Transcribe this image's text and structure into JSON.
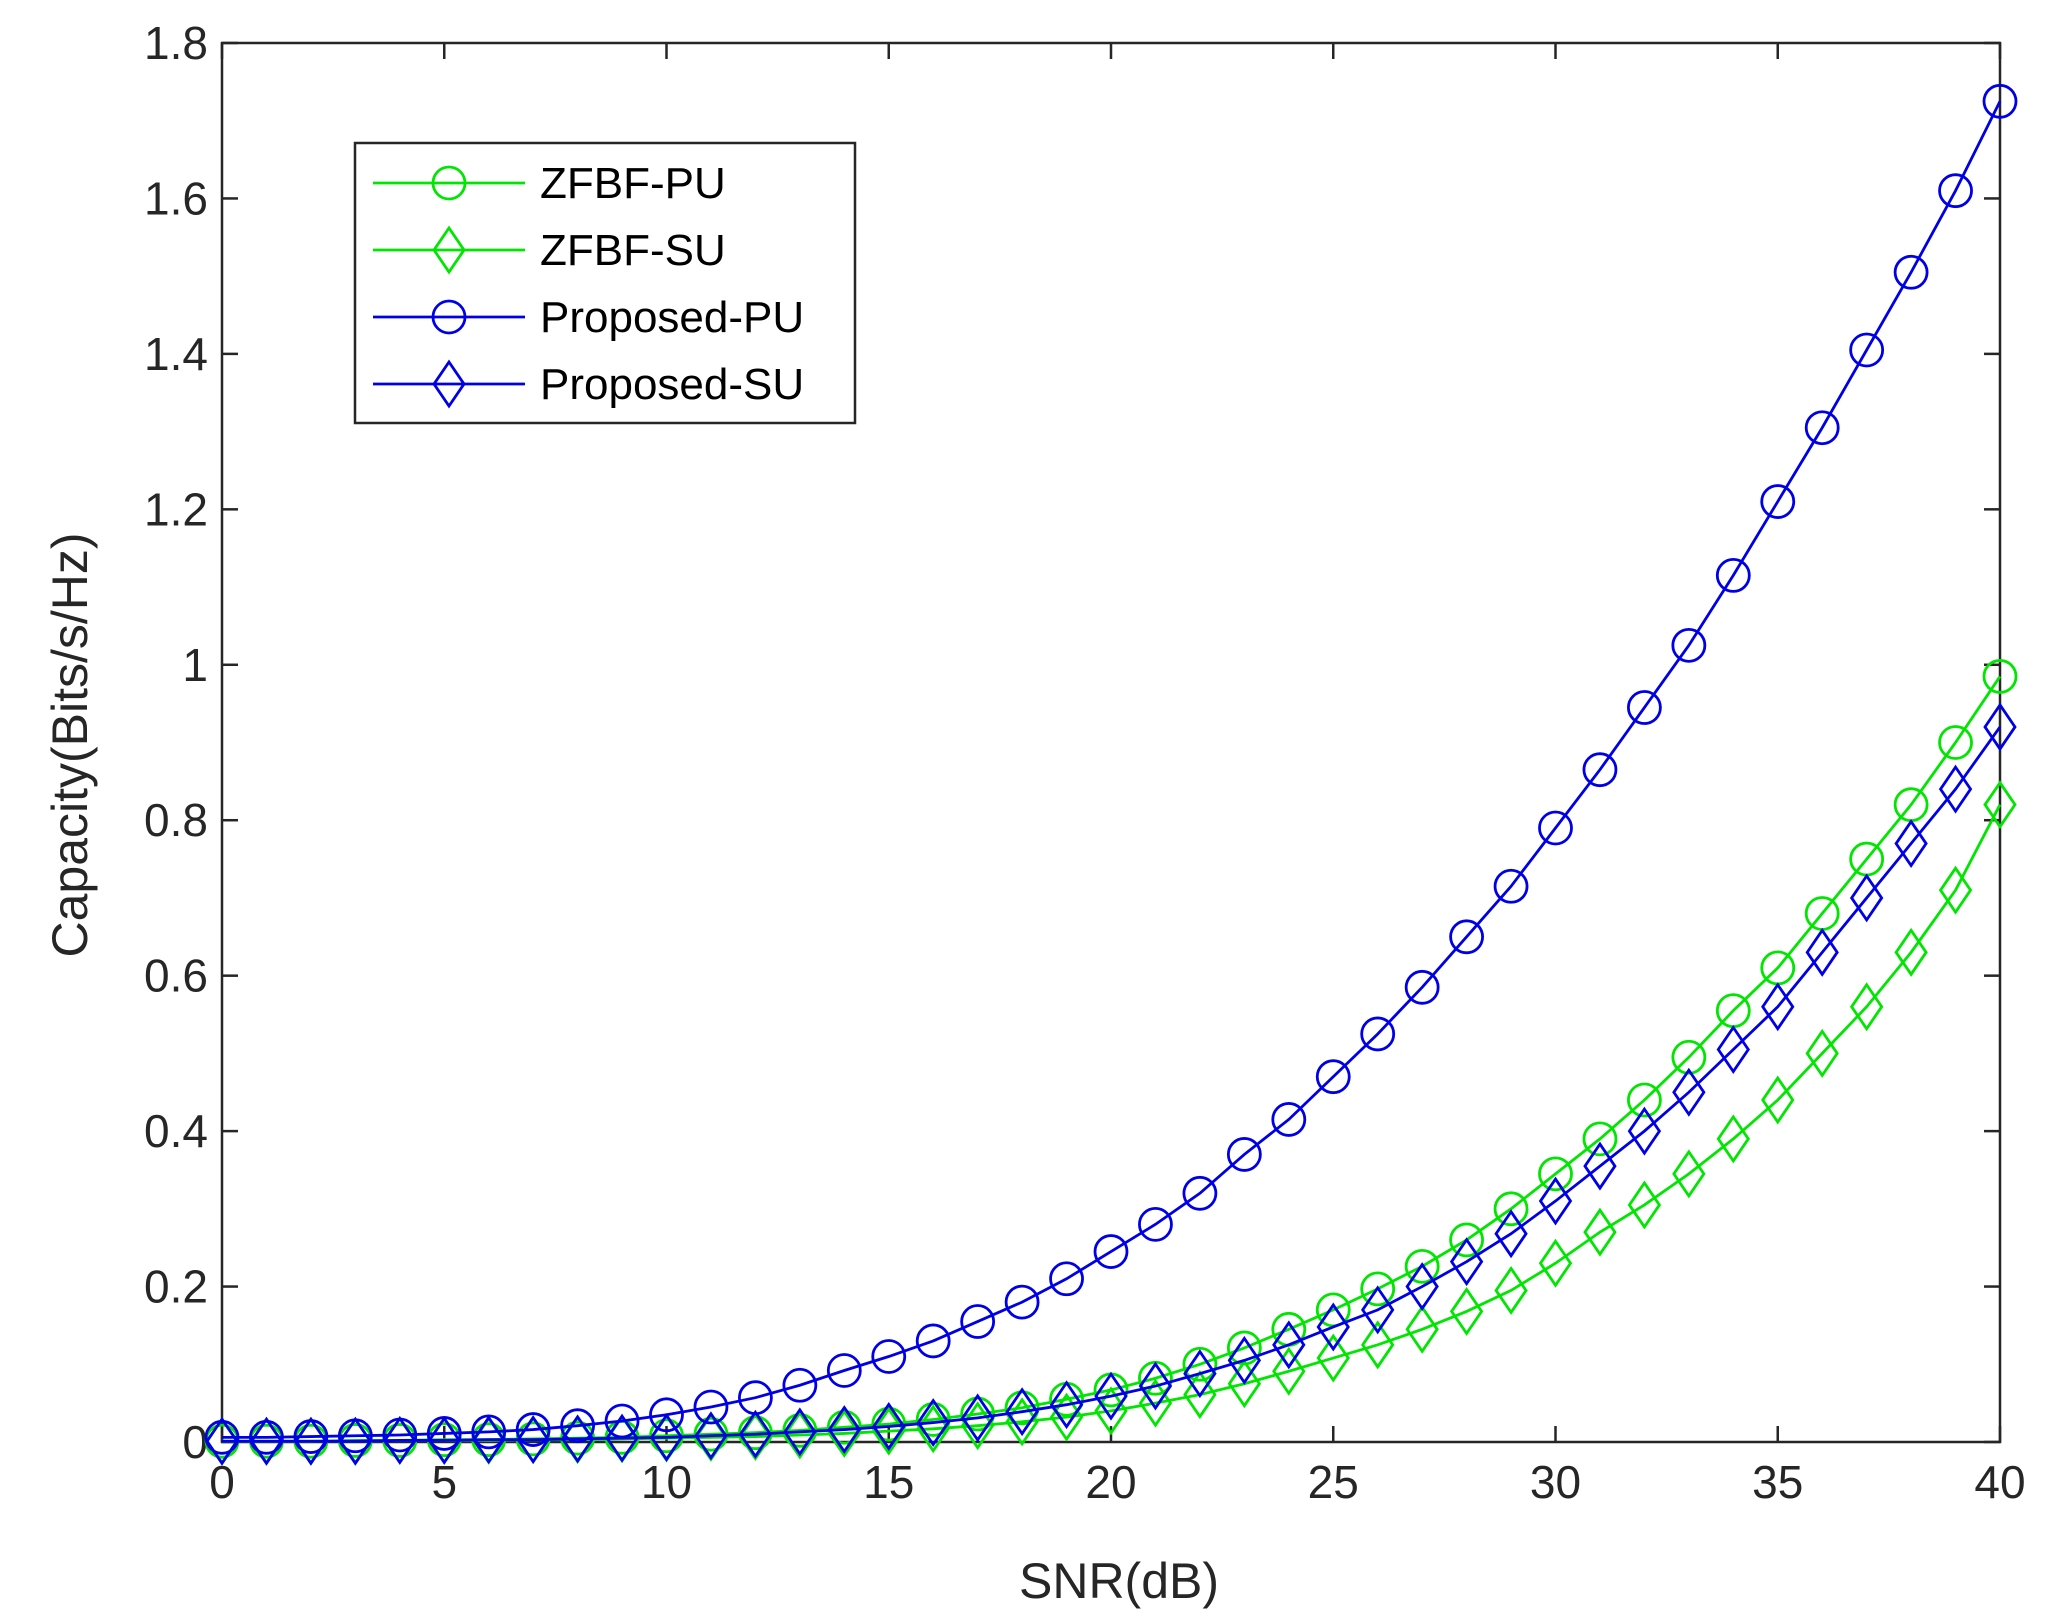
{
  "chart_data": {
    "type": "line",
    "title": "",
    "xlabel": "SNR(dB)",
    "ylabel": "Capacity(Bits/s/Hz)",
    "xlim": [
      0,
      40
    ],
    "ylim": [
      0,
      1.8
    ],
    "xticks": [
      0,
      5,
      10,
      15,
      20,
      25,
      30,
      35,
      40
    ],
    "xtick_labels": [
      "0",
      "5",
      "10",
      "15",
      "20",
      "25",
      "30",
      "35",
      "40"
    ],
    "yticks": [
      0,
      0.2,
      0.4,
      0.6,
      0.8,
      1.0,
      1.2,
      1.4,
      1.6,
      1.8
    ],
    "ytick_labels": [
      "0",
      "0.2",
      "0.4",
      "0.6",
      "0.8",
      "1",
      "1.2",
      "1.4",
      "1.6",
      "1.8"
    ],
    "grid": false,
    "legend_position": "top-left",
    "x": [
      0,
      1,
      2,
      3,
      4,
      5,
      6,
      7,
      8,
      9,
      10,
      11,
      12,
      13,
      14,
      15,
      16,
      17,
      18,
      19,
      20,
      21,
      22,
      23,
      24,
      25,
      26,
      27,
      28,
      29,
      30,
      31,
      32,
      33,
      34,
      35,
      36,
      37,
      38,
      39,
      40
    ],
    "series": [
      {
        "name": "ZFBF-PU",
        "color": "#00e600",
        "marker": "circle",
        "values": [
          0.001,
          0.001,
          0.001,
          0.002,
          0.002,
          0.003,
          0.003,
          0.004,
          0.005,
          0.006,
          0.008,
          0.01,
          0.012,
          0.015,
          0.019,
          0.023,
          0.029,
          0.036,
          0.044,
          0.055,
          0.067,
          0.082,
          0.1,
          0.121,
          0.145,
          0.17,
          0.197,
          0.226,
          0.26,
          0.3,
          0.345,
          0.39,
          0.44,
          0.495,
          0.555,
          0.61,
          0.68,
          0.75,
          0.82,
          0.9,
          0.985
        ]
      },
      {
        "name": "ZFBF-SU",
        "color": "#00e600",
        "marker": "diamond",
        "values": [
          0.001,
          0.001,
          0.001,
          0.001,
          0.002,
          0.002,
          0.002,
          0.003,
          0.003,
          0.004,
          0.005,
          0.006,
          0.007,
          0.009,
          0.011,
          0.014,
          0.017,
          0.021,
          0.026,
          0.032,
          0.04,
          0.05,
          0.061,
          0.075,
          0.091,
          0.108,
          0.125,
          0.145,
          0.168,
          0.195,
          0.23,
          0.27,
          0.305,
          0.345,
          0.39,
          0.44,
          0.5,
          0.56,
          0.63,
          0.71,
          0.82
        ]
      },
      {
        "name": "Proposed-PU",
        "color": "#0000e6",
        "marker": "circle",
        "values": [
          0.006,
          0.006,
          0.007,
          0.008,
          0.009,
          0.011,
          0.013,
          0.016,
          0.021,
          0.027,
          0.035,
          0.045,
          0.057,
          0.073,
          0.092,
          0.11,
          0.13,
          0.155,
          0.18,
          0.21,
          0.245,
          0.28,
          0.32,
          0.37,
          0.415,
          0.47,
          0.525,
          0.585,
          0.65,
          0.715,
          0.79,
          0.865,
          0.945,
          1.025,
          1.115,
          1.21,
          1.305,
          1.405,
          1.505,
          1.61,
          1.725
        ]
      },
      {
        "name": "Proposed-SU",
        "color": "#0000e6",
        "marker": "diamond",
        "values": [
          0.001,
          0.001,
          0.001,
          0.001,
          0.002,
          0.002,
          0.003,
          0.003,
          0.004,
          0.005,
          0.006,
          0.008,
          0.01,
          0.013,
          0.016,
          0.02,
          0.025,
          0.031,
          0.039,
          0.048,
          0.059,
          0.072,
          0.088,
          0.105,
          0.125,
          0.148,
          0.17,
          0.2,
          0.232,
          0.268,
          0.31,
          0.355,
          0.4,
          0.45,
          0.505,
          0.56,
          0.63,
          0.7,
          0.77,
          0.84,
          0.92
        ]
      }
    ]
  }
}
